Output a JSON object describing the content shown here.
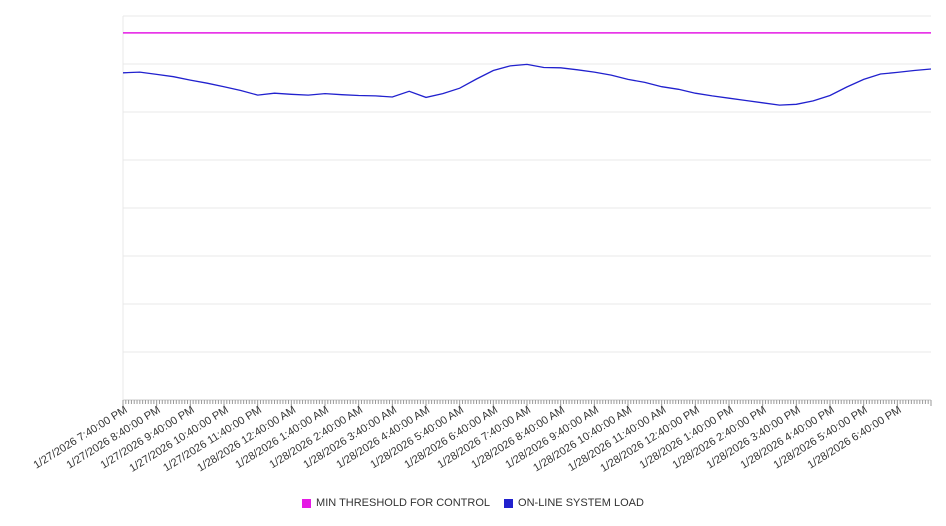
{
  "chart_data": {
    "type": "line",
    "title": "",
    "xlabel": "",
    "ylabel": "",
    "grid": "horizontal",
    "legend_position": "bottom",
    "y_axis_labels_visible": false,
    "ylim": [
      0,
      100
    ],
    "y_gridline_step": 12.5,
    "x_tick_labels": [
      "1/27/2026 7:40:00 PM",
      "1/27/2026 8:40:00 PM",
      "1/27/2026 9:40:00 PM",
      "1/27/2026 10:40:00 PM",
      "1/27/2026 11:40:00 PM",
      "1/28/2026 12:40:00 AM",
      "1/28/2026 1:40:00 AM",
      "1/28/2026 2:40:00 AM",
      "1/28/2026 3:40:00 AM",
      "1/28/2026 4:40:00 AM",
      "1/28/2026 5:40:00 AM",
      "1/28/2026 6:40:00 AM",
      "1/28/2026 7:40:00 AM",
      "1/28/2026 8:40:00 AM",
      "1/28/2026 9:40:00 AM",
      "1/28/2026 10:40:00 AM",
      "1/28/2026 11:40:00 AM",
      "1/28/2026 12:40:00 PM",
      "1/28/2026 1:40:00 PM",
      "1/28/2026 2:40:00 PM",
      "1/28/2026 3:40:00 PM",
      "1/28/2026 4:40:00 PM",
      "1/28/2026 5:40:00 PM",
      "1/28/2026 6:40:00 PM"
    ],
    "x_hours_span": 24,
    "x_step_hours": 0.5,
    "series": [
      {
        "name": "MIN THRESHOLD FOR CONTROL",
        "type": "threshold",
        "color": "#e519e5",
        "value": 95.6
      },
      {
        "name": "ON-LINE SYSTEM LOAD",
        "type": "line",
        "color": "#2121ce",
        "values": [
          85.2,
          85.4,
          84.8,
          84.2,
          83.3,
          82.5,
          81.6,
          80.6,
          79.4,
          79.9,
          79.6,
          79.4,
          79.8,
          79.5,
          79.3,
          79.2,
          78.9,
          80.4,
          78.8,
          79.8,
          81.2,
          83.6,
          85.8,
          87.0,
          87.4,
          86.6,
          86.5,
          86.0,
          85.4,
          84.6,
          83.5,
          82.7,
          81.6,
          80.9,
          79.9,
          79.2,
          78.6,
          78.0,
          77.4,
          76.8,
          77.0,
          77.9,
          79.3,
          81.5,
          83.5,
          84.9,
          85.3,
          85.8,
          86.2
        ]
      }
    ],
    "colors": {
      "gridline": "#e8e8e8",
      "axis": "#c9c9c9",
      "tick": "#999999",
      "label": "#333333"
    }
  }
}
